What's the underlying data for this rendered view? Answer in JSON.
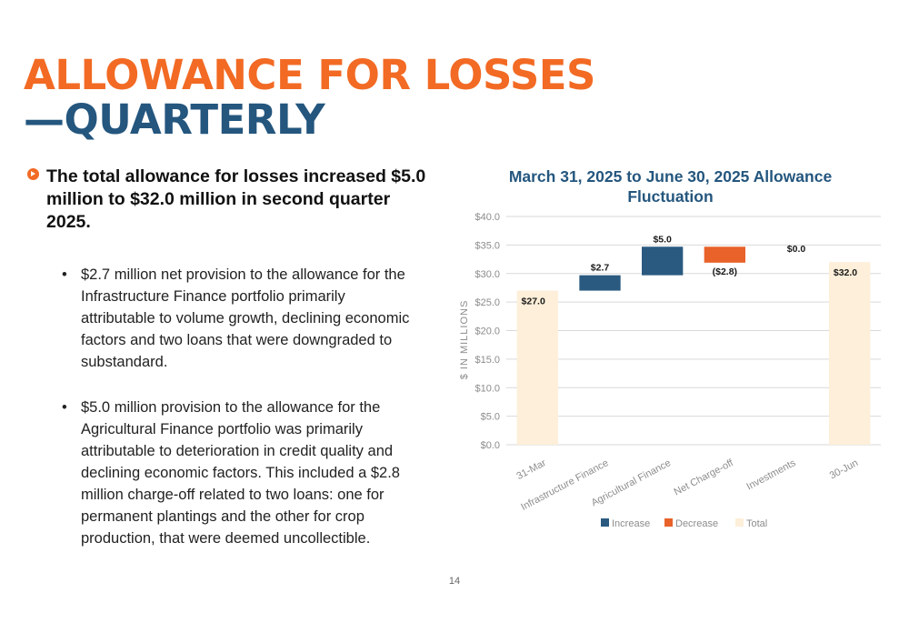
{
  "slide": {
    "title_line1": "ALLOWANCE FOR LOSSES",
    "title_line2": "—QUARTERLY",
    "main_bullet": "The total allowance for losses increased $5.0 million to $32.0 million in second quarter 2025.",
    "sub_bullets": [
      "$2.7 million net provision to the allowance for the Infrastructure Finance portfolio primarily attributable to volume growth, declining economic factors and two loans that were downgraded to substandard.",
      "$5.0 million provision to the allowance for the Agricultural Finance portfolio was primarily attributable to deterioration in credit quality and declining economic factors. This included a $2.8 million charge-off related to two loans: one for permanent plantings and the other for crop production, that were deemed uncollectible."
    ],
    "bullet_char": "•",
    "page_number": "14"
  },
  "chart_data": {
    "type": "bar",
    "subtype": "waterfall",
    "title": "March 31, 2025 to June 30, 2025 Allowance Fluctuation",
    "ylabel": "$ IN MILLIONS",
    "xlabel": "",
    "ylim": [
      0,
      40
    ],
    "ytick_labels": [
      "$0.0",
      "$5.0",
      "$10.0",
      "$15.0",
      "$20.0",
      "$25.0",
      "$30.0",
      "$35.0",
      "$40.0"
    ],
    "categories": [
      "31-Mar",
      "Infrastructure Finance",
      "Agricultural Finance",
      "Net Charge-off",
      "Investments",
      "30-Jun"
    ],
    "values": [
      27.0,
      2.7,
      5.0,
      -2.8,
      0.0,
      32.0
    ],
    "kinds": [
      "Total",
      "Increase",
      "Increase",
      "Decrease",
      "Increase",
      "Total"
    ],
    "data_labels": [
      "$27.0",
      "$2.7",
      "$5.0",
      "($2.8)",
      "$0.0",
      "$32.0"
    ],
    "legend": [
      "Increase",
      "Decrease",
      "Total"
    ],
    "legend_position": "bottom",
    "grid": true,
    "colors": {
      "Increase": "#2a5a80",
      "Decrease": "#e8622a",
      "Total": "#fdefd9",
      "grid": "#d9d9d9",
      "axis_text": "#8c8c8c"
    }
  }
}
